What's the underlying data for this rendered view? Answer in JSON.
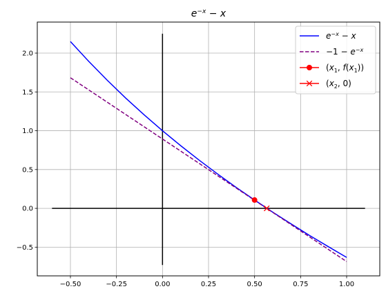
{
  "chart_data": {
    "type": "line",
    "title": "e^{-x} - x",
    "xlim": [
      -0.68,
      1.18
    ],
    "ylim": [
      -0.87,
      2.4
    ],
    "grid": true,
    "legend_position": "top-right",
    "xticks": [
      -0.5,
      -0.25,
      0.0,
      0.25,
      0.5,
      0.75,
      1.0
    ],
    "xtick_labels": [
      "−0.50",
      "−0.25",
      "0.00",
      "0.25",
      "0.50",
      "0.75",
      "1.00"
    ],
    "yticks": [
      -0.5,
      0.0,
      0.5,
      1.0,
      1.5,
      2.0
    ],
    "ytick_labels": [
      "−0.5",
      "0.0",
      "0.5",
      "1.0",
      "1.5",
      "2.0"
    ],
    "series": [
      {
        "name": "e^{-x} - x",
        "style": "solid",
        "color": "#0000ff",
        "x": [
          -0.5,
          -0.4,
          -0.3,
          -0.2,
          -0.1,
          0.0,
          0.1,
          0.2,
          0.3,
          0.4,
          0.5,
          0.6,
          0.7,
          0.8,
          0.9,
          1.0
        ],
        "y": [
          2.149,
          1.892,
          1.65,
          1.421,
          1.205,
          1.0,
          0.805,
          0.619,
          0.441,
          0.27,
          0.107,
          -0.051,
          -0.203,
          -0.351,
          -0.493,
          -0.632
        ]
      },
      {
        "name": "-1 - e^{-x}",
        "style": "dashed",
        "color": "#800080",
        "x": [
          -0.5,
          1.0
        ],
        "y": [
          1.683,
          -0.686
        ]
      },
      {
        "name": "(x_1, f(x_1))",
        "style": "marker-circle",
        "color": "#ff0000",
        "x": [
          0.5
        ],
        "y": [
          0.107
        ]
      },
      {
        "name": "(x_2, 0)",
        "style": "marker-x",
        "color": "#ff0000",
        "x": [
          0.566
        ],
        "y": [
          0.0
        ]
      }
    ],
    "reference_lines": [
      {
        "orientation": "horizontal",
        "value": 0.0,
        "from": -0.6,
        "to": 1.1,
        "color": "#000000"
      },
      {
        "orientation": "vertical",
        "value": 0.0,
        "from": -0.73,
        "to": 2.25,
        "color": "#000000"
      }
    ]
  }
}
